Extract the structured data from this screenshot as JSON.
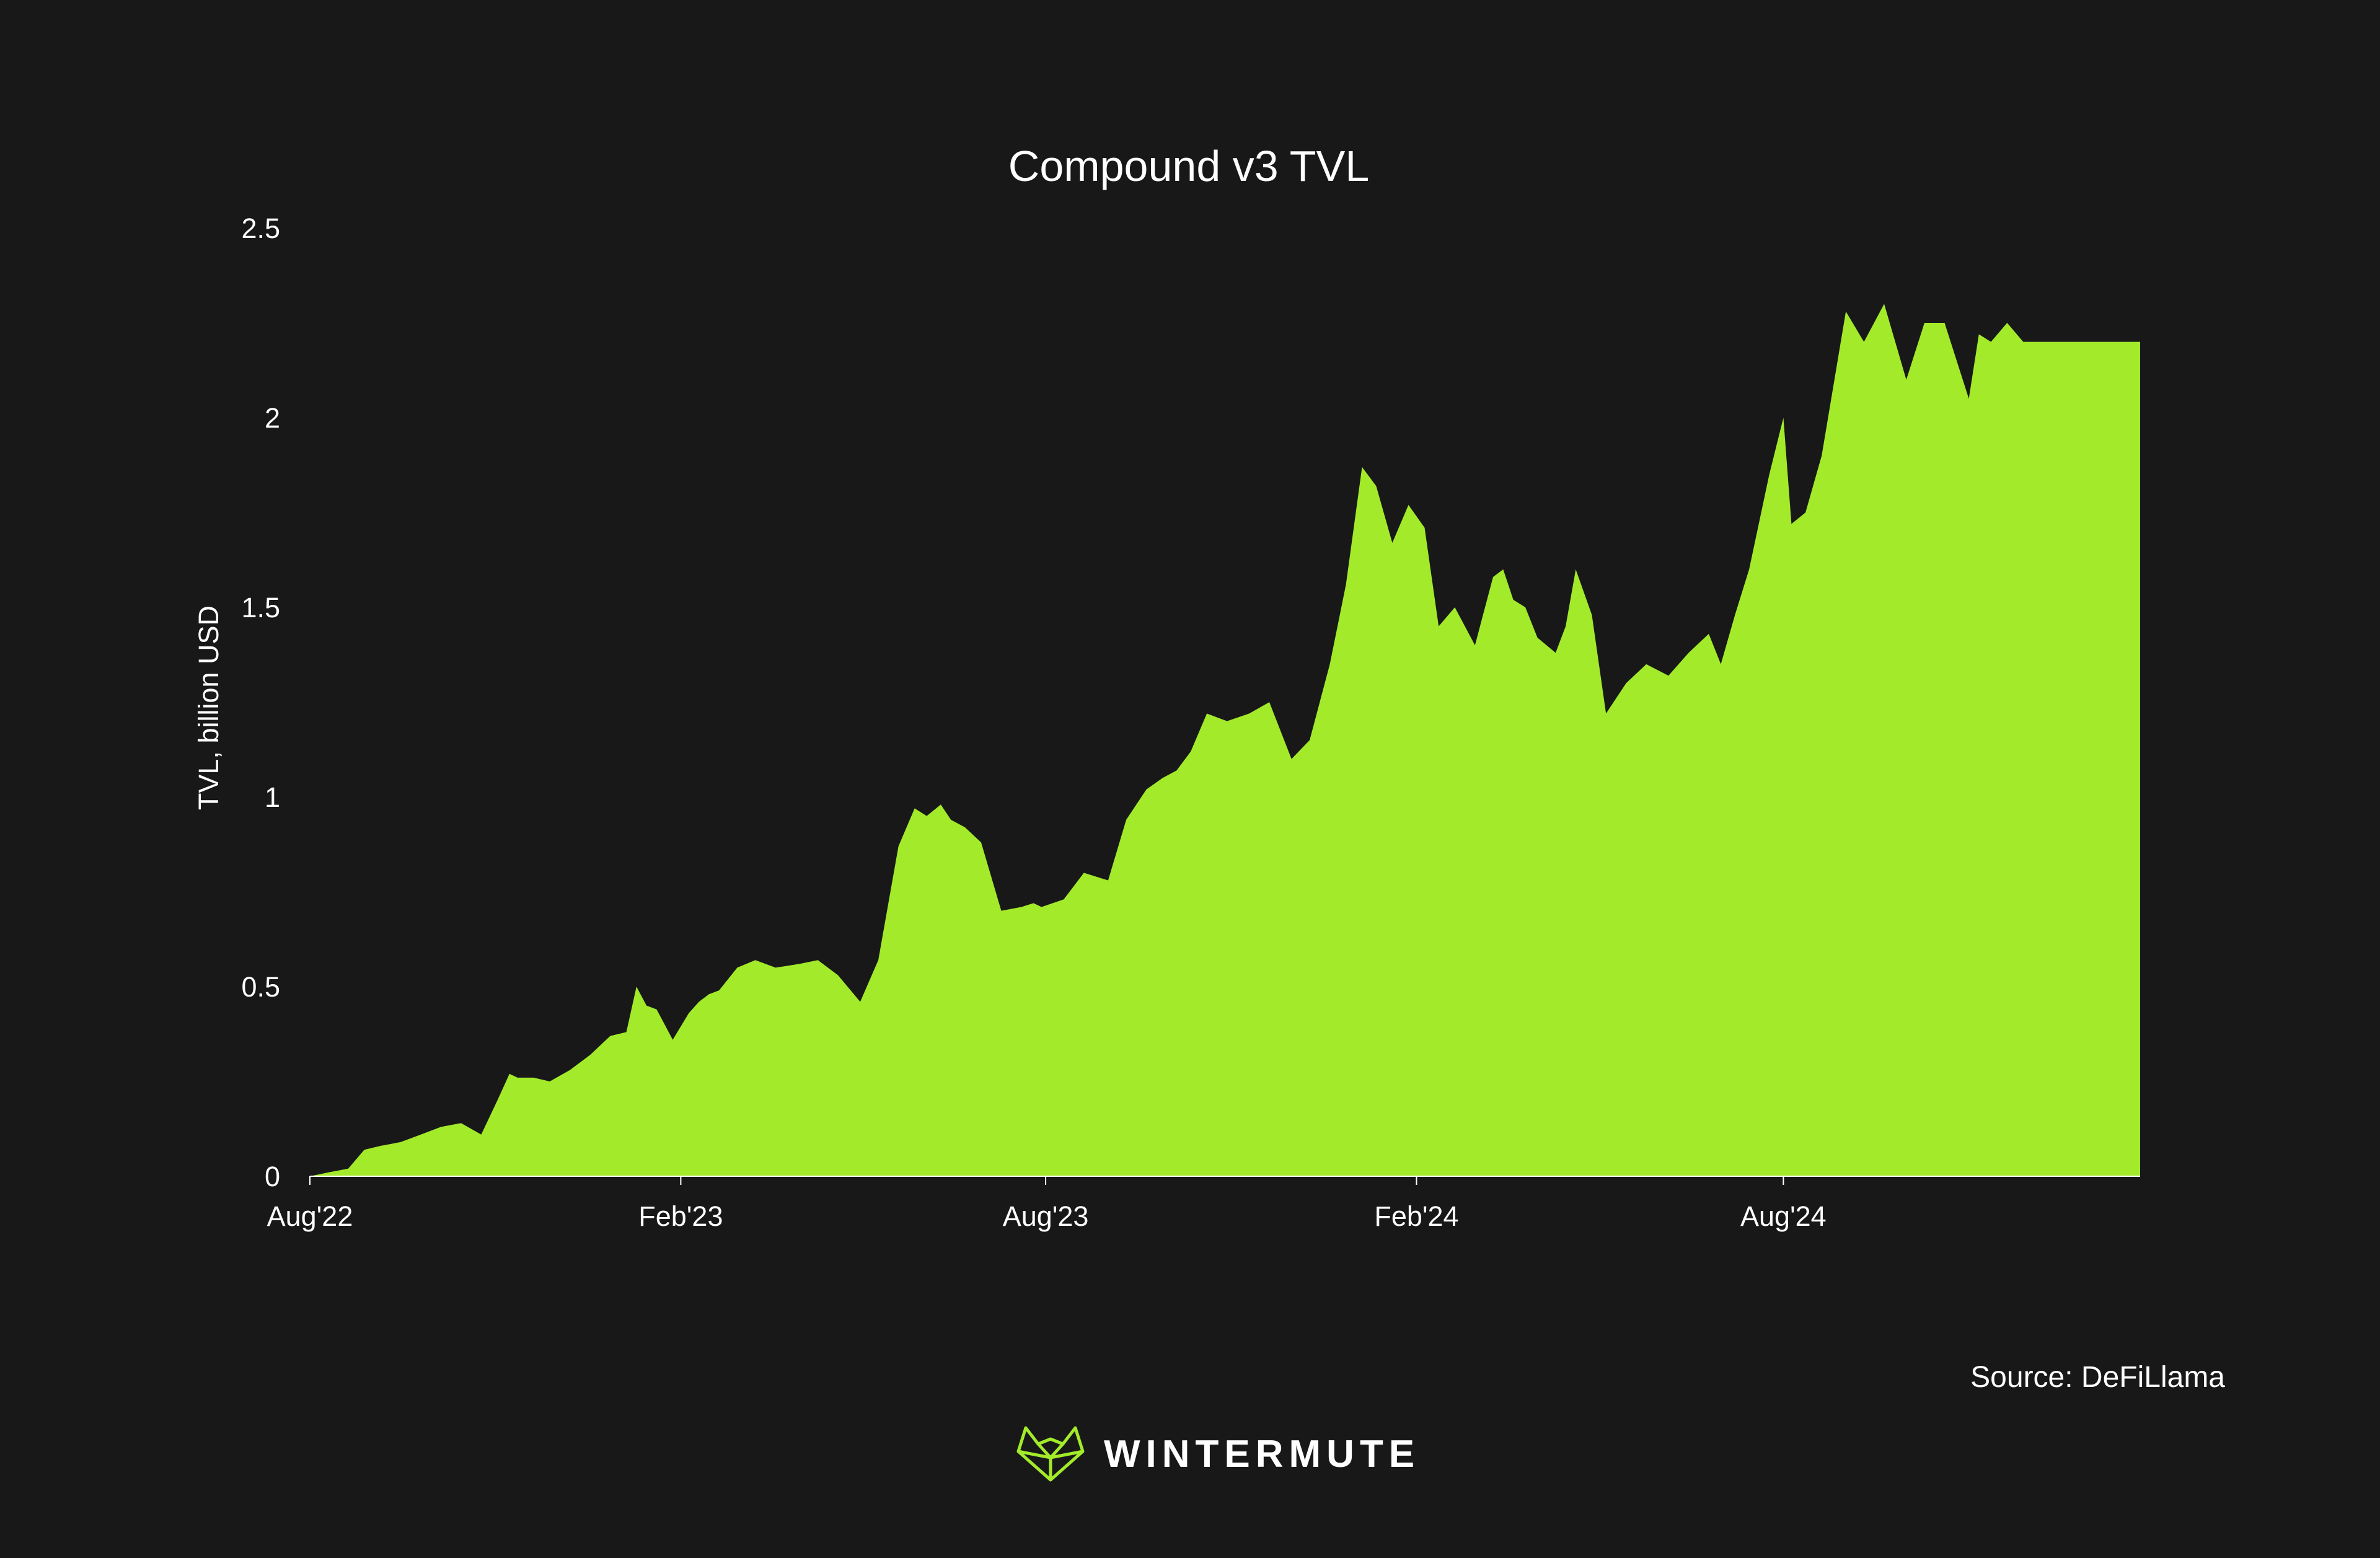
{
  "chart_data": {
    "type": "area",
    "title": "Compound v3 TVL",
    "xlabel": "",
    "ylabel": "TVL, billion USD",
    "ylim": [
      0,
      2.5
    ],
    "y_ticks": [
      "0",
      "0.5",
      "1",
      "1.5",
      "2",
      "2.5"
    ],
    "x_ticks": [
      "Aug'22",
      "Feb'23",
      "Aug'23",
      "Feb'24",
      "Aug'24"
    ],
    "x_tick_dates": [
      "2022-08-01",
      "2023-02-01",
      "2023-08-01",
      "2024-02-01",
      "2024-08-01"
    ],
    "color": "#a3eb2a",
    "grid": false,
    "series": [
      {
        "x": [
          "2022-08-01",
          "2022-08-10",
          "2022-08-20",
          "2022-08-28",
          "2022-09-05",
          "2022-09-15",
          "2022-09-25",
          "2022-10-05",
          "2022-10-15",
          "2022-10-25",
          "2022-11-02",
          "2022-11-08",
          "2022-11-12",
          "2022-11-20",
          "2022-11-28",
          "2022-12-08",
          "2022-12-18",
          "2022-12-28",
          "2023-01-05",
          "2023-01-10",
          "2023-01-15",
          "2023-01-20",
          "2023-01-28",
          "2023-02-05",
          "2023-02-10",
          "2023-02-15",
          "2023-02-20",
          "2023-03-01",
          "2023-03-10",
          "2023-03-20",
          "2023-04-01",
          "2023-04-10",
          "2023-04-20",
          "2023-05-01",
          "2023-05-10",
          "2023-05-20",
          "2023-05-28",
          "2023-06-03",
          "2023-06-10",
          "2023-06-15",
          "2023-06-22",
          "2023-06-30",
          "2023-07-10",
          "2023-07-20",
          "2023-07-26",
          "2023-07-30",
          "2023-08-10",
          "2023-08-20",
          "2023-09-01",
          "2023-09-10",
          "2023-09-20",
          "2023-09-28",
          "2023-10-05",
          "2023-10-12",
          "2023-10-20",
          "2023-10-30",
          "2023-11-10",
          "2023-11-20",
          "2023-12-01",
          "2023-12-10",
          "2023-12-20",
          "2023-12-28",
          "2024-01-05",
          "2024-01-12",
          "2024-01-20",
          "2024-01-28",
          "2024-02-05",
          "2024-02-12",
          "2024-02-20",
          "2024-03-01",
          "2024-03-10",
          "2024-03-15",
          "2024-03-20",
          "2024-03-26",
          "2024-04-01",
          "2024-04-10",
          "2024-04-15",
          "2024-04-20",
          "2024-04-28",
          "2024-05-05",
          "2024-05-15",
          "2024-05-25",
          "2024-06-05",
          "2024-06-15",
          "2024-06-25",
          "2024-07-01",
          "2024-07-08",
          "2024-07-15",
          "2024-07-25",
          "2024-08-01",
          "2024-08-05",
          "2024-08-12",
          "2024-08-20",
          "2024-09-01",
          "2024-09-10",
          "2024-09-20",
          "2024-10-01",
          "2024-10-10",
          "2024-10-20",
          "2024-11-01",
          "2024-11-06",
          "2024-11-12",
          "2024-11-20",
          "2024-11-28",
          "2024-12-05",
          "2024-12-10",
          "2024-12-15",
          "2024-12-20",
          "2024-12-28",
          "2025-01-05",
          "2025-01-15",
          "2025-01-20",
          "2025-01-25"
        ],
        "values": [
          0.0,
          0.01,
          0.02,
          0.07,
          0.08,
          0.09,
          0.11,
          0.13,
          0.14,
          0.11,
          0.2,
          0.27,
          0.26,
          0.26,
          0.25,
          0.28,
          0.32,
          0.37,
          0.38,
          0.5,
          0.45,
          0.44,
          0.36,
          0.43,
          0.46,
          0.48,
          0.49,
          0.55,
          0.57,
          0.55,
          0.56,
          0.57,
          0.53,
          0.46,
          0.57,
          0.87,
          0.97,
          0.95,
          0.98,
          0.94,
          0.92,
          0.88,
          0.7,
          0.71,
          0.72,
          0.71,
          0.73,
          0.8,
          0.78,
          0.94,
          1.02,
          1.05,
          1.07,
          1.12,
          1.22,
          1.2,
          1.22,
          1.25,
          1.1,
          1.15,
          1.35,
          1.56,
          1.87,
          1.82,
          1.67,
          1.77,
          1.71,
          1.45,
          1.5,
          1.4,
          1.58,
          1.6,
          1.52,
          1.5,
          1.42,
          1.38,
          1.45,
          1.6,
          1.48,
          1.22,
          1.3,
          1.35,
          1.32,
          1.38,
          1.43,
          1.35,
          1.48,
          1.6,
          1.85,
          2.0,
          1.72,
          1.75,
          1.9,
          2.28,
          2.2,
          2.3,
          2.1,
          2.25,
          2.25,
          2.05,
          2.22,
          2.2,
          2.25,
          2.2,
          2.2,
          2.2,
          2.2,
          2.2,
          2.2,
          2.2,
          2.2,
          2.2,
          2.2
        ]
      }
    ]
  },
  "footer": {
    "source": "Source: DeFiLlama",
    "brand": "WINTERMUTE"
  },
  "brand_color": "#a3eb2a"
}
